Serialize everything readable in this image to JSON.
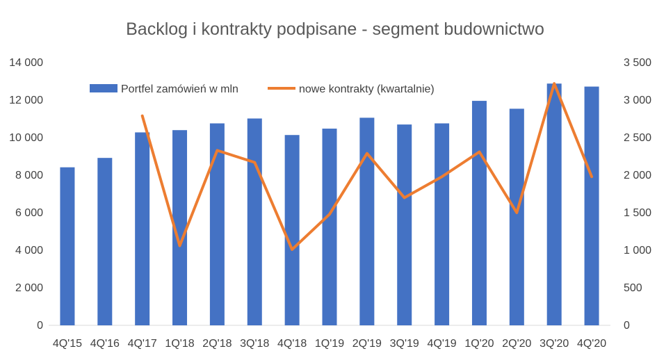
{
  "chart_data": {
    "type": "bar",
    "title": "Backlog i kontrakty podpisane - segment budownictwo",
    "categories": [
      "4Q'15",
      "4Q'16",
      "4Q'17",
      "1Q'18",
      "2Q'18",
      "3Q'18",
      "4Q'18",
      "1Q'19",
      "2Q'19",
      "3Q'19",
      "4Q'19",
      "1Q'20",
      "2Q'20",
      "3Q'20",
      "4Q'20"
    ],
    "series": [
      {
        "name": "Portfel zamówień w mln",
        "type": "bar",
        "axis": "left",
        "color": "#4472C4",
        "values": [
          8420,
          8920,
          10280,
          10400,
          10760,
          11020,
          10140,
          10480,
          11060,
          10700,
          10760,
          11960,
          11540,
          12880,
          12720
        ]
      },
      {
        "name": "nowe kontrakty (kwartalnie)",
        "type": "line",
        "axis": "right",
        "color": "#ED7D31",
        "values": [
          null,
          null,
          2790,
          1060,
          2330,
          2170,
          1010,
          1480,
          2290,
          1700,
          1980,
          2310,
          1500,
          3220,
          1980
        ]
      }
    ],
    "y_left": {
      "min": 0,
      "max": 14000,
      "ticks": [
        "0",
        "2 000",
        "4 000",
        "6 000",
        "8 000",
        "10 000",
        "12 000",
        "14 000"
      ]
    },
    "y_right": {
      "min": 0,
      "max": 3500,
      "ticks": [
        "0",
        "500",
        "1 000",
        "1 500",
        "2 000",
        "2 500",
        "3 000",
        "3 500"
      ]
    },
    "grid": false,
    "legend": "top-center"
  }
}
